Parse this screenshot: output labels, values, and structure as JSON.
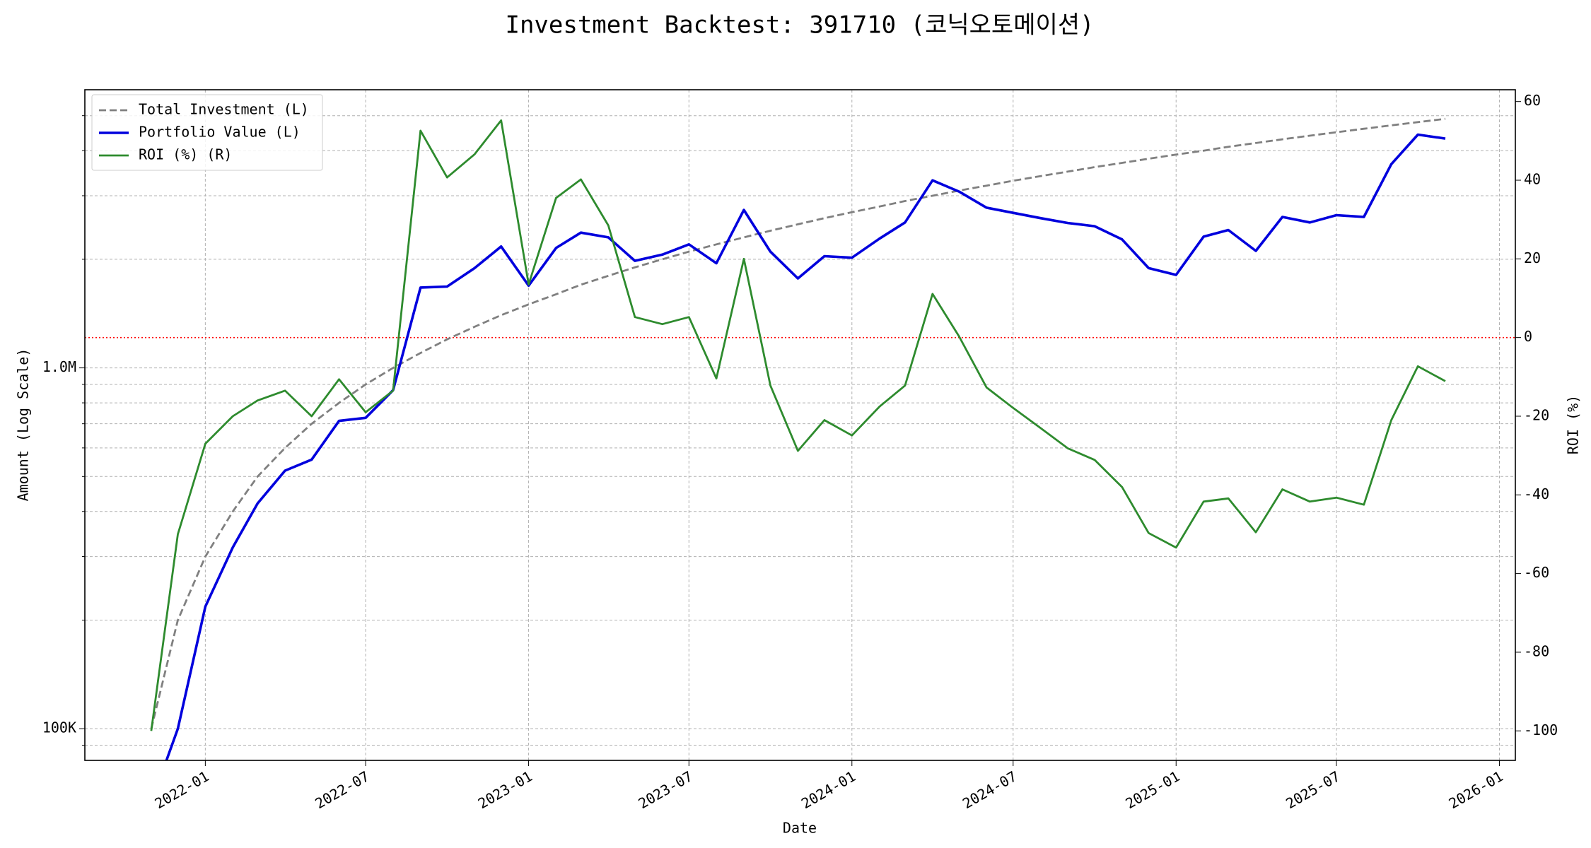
{
  "chart_data": {
    "type": "line",
    "title": "Investment Backtest: 391710 (코닉오토메이션)",
    "x_label": "Date",
    "y_label": "Amount (Log Scale)",
    "y2_label": "ROI (%)",
    "y_label_color": "#0000dd",
    "y2_label_color": "#2e8b2e",
    "log_scale_y": true,
    "grid": true,
    "minor_grid": true,
    "legend": "upper-left",
    "x": [
      "2021-11",
      "2021-12",
      "2022-01",
      "2022-02",
      "2022-03",
      "2022-04",
      "2022-05",
      "2022-06",
      "2022-07",
      "2022-08",
      "2022-09",
      "2022-10",
      "2022-11",
      "2022-12",
      "2023-01",
      "2023-02",
      "2023-03",
      "2023-04",
      "2023-05",
      "2023-06",
      "2023-07",
      "2023-08",
      "2023-09",
      "2023-10",
      "2023-11",
      "2023-12",
      "2024-01",
      "2024-02",
      "2024-03",
      "2024-04",
      "2024-05",
      "2024-06",
      "2024-07",
      "2024-08",
      "2024-09",
      "2024-10",
      "2024-11",
      "2024-12",
      "2025-01",
      "2025-02",
      "2025-03",
      "2025-04",
      "2025-05",
      "2025-06",
      "2025-07",
      "2025-08",
      "2025-09",
      "2025-10",
      "2025-11"
    ],
    "xlim": [
      "2021-08-18",
      "2026-01-19"
    ],
    "xticks": [
      "2022-01",
      "2022-07",
      "2023-01",
      "2023-07",
      "2024-01",
      "2024-07",
      "2025-01",
      "2025-07",
      "2026-01"
    ],
    "ylim": [
      81700,
      5900000
    ],
    "yticks": [
      {
        "value": 100000,
        "label": "100K"
      },
      {
        "value": 1000000,
        "label": "1.0M"
      }
    ],
    "y2lim": [
      -107.5,
      63
    ],
    "y2ticks": [
      -100,
      -80,
      -60,
      -40,
      -20,
      0,
      20,
      40,
      60
    ],
    "y2_hline": {
      "value": 0,
      "color": "#ff0000"
    },
    "series": [
      {
        "name": "Total Investment (L)",
        "color": "#808080",
        "dash": true,
        "axis": "y",
        "values": [
          100000,
          200000,
          300000,
          400000,
          500000,
          600000,
          700000,
          800000,
          900000,
          1000000,
          1100000,
          1200000,
          1300000,
          1400000,
          1500000,
          1600000,
          1700000,
          1800000,
          1900000,
          2000000,
          2100000,
          2200000,
          2300000,
          2400000,
          2500000,
          2600000,
          2700000,
          2800000,
          2900000,
          3000000,
          3100000,
          3200000,
          3300000,
          3400000,
          3500000,
          3600000,
          3700000,
          3800000,
          3900000,
          4000000,
          4100000,
          4200000,
          4300000,
          4400000,
          4500000,
          4600000,
          4700000,
          4800000,
          4900000
        ]
      },
      {
        "name": "Portfolio Value (L)",
        "color": "#0000dd",
        "dash": false,
        "axis": "y",
        "values": [
          0,
          100000,
          218000,
          318000,
          421000,
          519000,
          557000,
          713000,
          727000,
          867000,
          1670000,
          1680000,
          1890000,
          2170000,
          1690000,
          2150000,
          2370000,
          2300000,
          1980000,
          2060000,
          2200000,
          1950000,
          2740000,
          2100000,
          1770000,
          2040000,
          2020000,
          2280000,
          2530000,
          3310000,
          3080000,
          2780000,
          2690000,
          2600000,
          2520000,
          2470000,
          2270000,
          1890000,
          1810000,
          2310000,
          2410000,
          2110000,
          2620000,
          2530000,
          2650000,
          2620000,
          3670000,
          4430000,
          4320000
        ]
      },
      {
        "name": "ROI (%) (R)",
        "color": "#2e8b2e",
        "dash": false,
        "axis": "y2",
        "values": [
          -100,
          -50,
          -27,
          -20,
          -16,
          -13.5,
          -20,
          -10.6,
          -19,
          -13.5,
          52.6,
          40.7,
          46.6,
          55.2,
          13.5,
          35.5,
          40.2,
          28.5,
          5.2,
          3.4,
          5.2,
          -10.4,
          20,
          -12.2,
          -28.8,
          -21,
          -24.9,
          -17.6,
          -12.2,
          11.1,
          0.3,
          -12.7,
          -17.9,
          -23,
          -28.2,
          -31.1,
          -38,
          -49.7,
          -53.4,
          -41.7,
          -40.9,
          -49.5,
          -38.6,
          -41.7,
          -40.7,
          -42.5,
          -21,
          -7.3,
          -11.1
        ]
      }
    ]
  }
}
